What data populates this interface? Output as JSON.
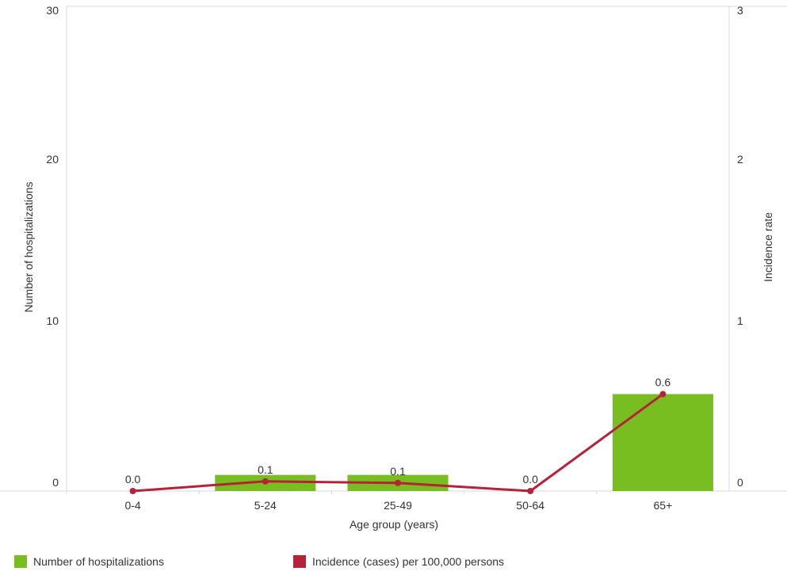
{
  "chart_data": {
    "type": "bar",
    "title": "",
    "categories": [
      "0-4",
      "5-24",
      "25-49",
      "50-64",
      "65+"
    ],
    "xlabel": "Age group (years)",
    "ylabel": "Number of hospitalizations",
    "ylabel_right": "Incidence rate",
    "ylim": [
      0,
      30
    ],
    "ylim_right": [
      0,
      3
    ],
    "yticks": [
      "0",
      "10",
      "20",
      "30"
    ],
    "yticks_right": [
      "0",
      "1",
      "2",
      "3"
    ],
    "grid": false,
    "legend_position": "bottom",
    "series": [
      {
        "name": "Number of hospitalizations",
        "type": "bar",
        "axis": "left",
        "values": [
          0,
          1,
          1,
          0,
          6
        ],
        "color": "#78be20"
      },
      {
        "name": "Incidence (cases) per 100,000 persons",
        "type": "line",
        "axis": "right",
        "values": [
          0.0,
          0.06,
          0.05,
          0.0,
          0.6
        ],
        "labels": [
          "0.0",
          "0.1",
          "0.1",
          "0.0",
          "0.6"
        ],
        "color": "#b5223a"
      }
    ]
  }
}
